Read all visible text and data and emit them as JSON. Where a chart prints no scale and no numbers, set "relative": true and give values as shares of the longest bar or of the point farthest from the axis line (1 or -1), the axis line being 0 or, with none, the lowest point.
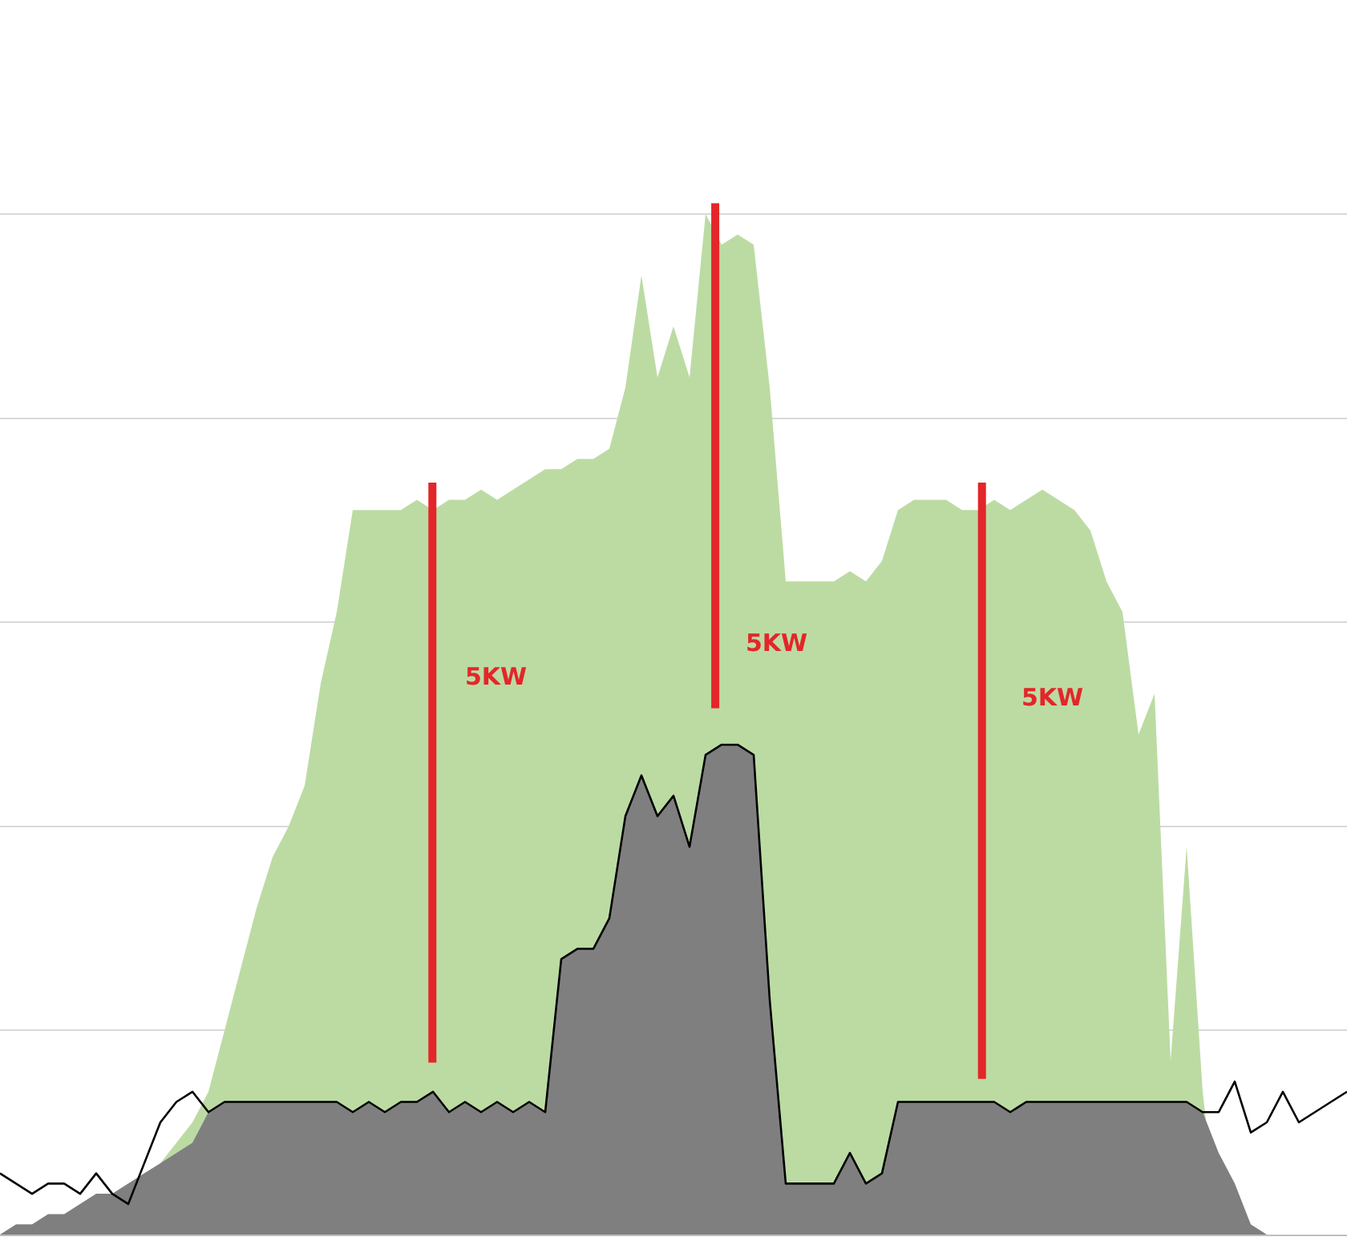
{
  "chart_data": {
    "type": "area",
    "relative": true,
    "grid": "y",
    "tick_labels": false,
    "categories": [
      null,
      null,
      null,
      null,
      null,
      null,
      null,
      null,
      null,
      null,
      null,
      null,
      null,
      null,
      null,
      null,
      null,
      null,
      null,
      null,
      null,
      null,
      null,
      null,
      null,
      null,
      null,
      null,
      null,
      null,
      null,
      null,
      null,
      null,
      null,
      null,
      null,
      null,
      null,
      null,
      null,
      null,
      null,
      null,
      null,
      null,
      null,
      null,
      null,
      null,
      null,
      null,
      null,
      null,
      null,
      null,
      null,
      null,
      null,
      null,
      null,
      null,
      null,
      null,
      null,
      null,
      null,
      null,
      null,
      null,
      null,
      null,
      null,
      null,
      null,
      null,
      null,
      null,
      null,
      null,
      null,
      null,
      null,
      null,
      null
    ],
    "annotations": [
      "5KW",
      "5KW",
      "5KW"
    ],
    "series": [
      {
        "color": "#bcdba3",
        "values": [
          null,
          null,
          null,
          null,
          null,
          null,
          null,
          null,
          null,
          null,
          0.07,
          0.09,
          0.11,
          0.14,
          0.2,
          0.26,
          0.32,
          0.37,
          0.4,
          0.44,
          0.54,
          0.61,
          0.71,
          0.71,
          0.71,
          0.71,
          0.72,
          0.71,
          0.72,
          0.72,
          0.73,
          0.72,
          0.73,
          0.74,
          0.75,
          0.75,
          0.76,
          0.76,
          0.77,
          0.83,
          0.94,
          0.84,
          0.89,
          0.84,
          1,
          0.97,
          0.98,
          0.97,
          0.83,
          0.64,
          0.64,
          0.64,
          0.64,
          0.65,
          0.64,
          0.66,
          0.71,
          0.72,
          0.72,
          0.72,
          0.71,
          0.71,
          0.72,
          0.71,
          0.72,
          0.73,
          0.72,
          0.71,
          0.69,
          0.64,
          0.61,
          0.49,
          0.53,
          0.17,
          0.38,
          0.14,
          0,
          0,
          0,
          0,
          0,
          0,
          0,
          0,
          0
        ]
      },
      {
        "color": "#7f7f80",
        "values": [
          0,
          0.01,
          0.01,
          0.02,
          0.02,
          0.03,
          0.04,
          0.04,
          0.05,
          0.06,
          0.07,
          0.08,
          0.09,
          0.12,
          0.13,
          0.13,
          0.13,
          0.13,
          0.13,
          0.13,
          0.13,
          0.13,
          0.12,
          0.13,
          0.12,
          0.13,
          0.13,
          0.14,
          0.12,
          0.13,
          0.12,
          0.13,
          0.12,
          0.13,
          0.12,
          0.27,
          0.28,
          0.28,
          0.31,
          0.41,
          0.45,
          0.41,
          0.43,
          0.38,
          0.47,
          0.48,
          0.48,
          0.47,
          0.23,
          0.05,
          0.05,
          0.05,
          0.05,
          0.08,
          0.05,
          0.06,
          0.13,
          0.13,
          0.13,
          0.13,
          0.13,
          0.13,
          0.13,
          0.12,
          0.13,
          0.13,
          0.13,
          0.13,
          0.13,
          0.13,
          0.13,
          0.13,
          0.13,
          0.13,
          0.13,
          0.12,
          0.08,
          0.05,
          0.01,
          0,
          0,
          0,
          0,
          0,
          0
        ]
      },
      {
        "type": "line",
        "color": "#000000",
        "values": [
          0.06,
          0.05,
          0.04,
          0.05,
          0.05,
          0.04,
          0.06,
          0.04,
          0.03,
          0.07,
          0.11,
          0.13,
          0.14,
          0.12,
          0.13,
          0.13,
          0.13,
          0.13,
          0.13,
          0.13,
          0.13,
          0.13,
          0.12,
          0.13,
          0.12,
          0.13,
          0.13,
          0.14,
          0.12,
          0.13,
          0.12,
          0.13,
          0.12,
          0.13,
          0.12,
          0.27,
          0.28,
          0.28,
          0.31,
          0.41,
          0.45,
          0.41,
          0.43,
          0.38,
          0.47,
          0.48,
          0.48,
          0.47,
          0.23,
          0.05,
          0.05,
          0.05,
          0.05,
          0.08,
          0.05,
          0.06,
          0.13,
          0.13,
          0.13,
          0.13,
          0.13,
          0.13,
          0.13,
          0.12,
          0.13,
          0.13,
          0.13,
          0.13,
          0.13,
          0.13,
          0.13,
          0.13,
          0.13,
          0.13,
          0.13,
          0.12,
          0.12,
          0.15,
          0.1,
          0.11,
          0.14,
          0.11,
          0.12,
          0.13,
          0.14
        ]
      }
    ]
  }
}
